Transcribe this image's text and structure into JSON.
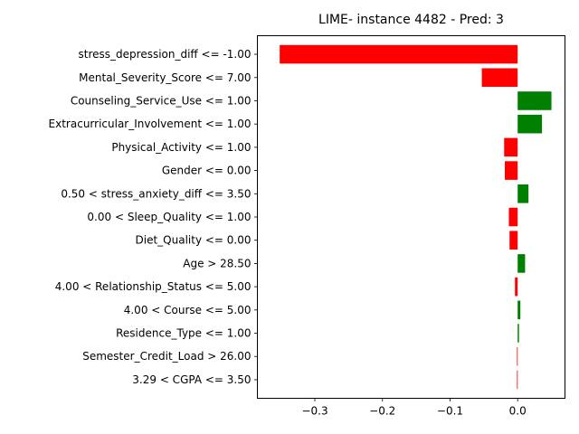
{
  "chart_data": {
    "type": "bar",
    "orientation": "horizontal",
    "title": "LIME- instance 4482 - Pred: 3",
    "xlabel": "",
    "ylabel": "",
    "xlim": [
      -0.385,
      0.07
    ],
    "xticks": [
      -0.3,
      -0.2,
      -0.1,
      0.0
    ],
    "xtick_labels": [
      "−0.3",
      "−0.2",
      "−0.1",
      "0.0"
    ],
    "grid": false,
    "colors": {
      "positive": "#008000",
      "negative": "#ff0000"
    },
    "categories": [
      "stress_depression_diff <= -1.00",
      "Mental_Severity_Score <= 7.00",
      "Counseling_Service_Use <= 1.00",
      "Extracurricular_Involvement <= 1.00",
      "Physical_Activity <= 1.00",
      "Gender <= 0.00",
      "0.50 < stress_anxiety_diff <= 3.50",
      "0.00 < Sleep_Quality <= 1.00",
      "Diet_Quality <= 0.00",
      "Age > 28.50",
      "4.00 < Relationship_Status <= 5.00",
      "4.00 < Course <= 5.00",
      "Residence_Type <= 1.00",
      "Semester_Credit_Load > 26.00",
      "3.29 < CGPA <= 3.50"
    ],
    "values": [
      -0.352,
      -0.053,
      0.05,
      0.036,
      -0.02,
      -0.019,
      0.016,
      -0.013,
      -0.012,
      0.011,
      -0.004,
      0.004,
      0.002,
      -0.001,
      -0.001
    ]
  }
}
